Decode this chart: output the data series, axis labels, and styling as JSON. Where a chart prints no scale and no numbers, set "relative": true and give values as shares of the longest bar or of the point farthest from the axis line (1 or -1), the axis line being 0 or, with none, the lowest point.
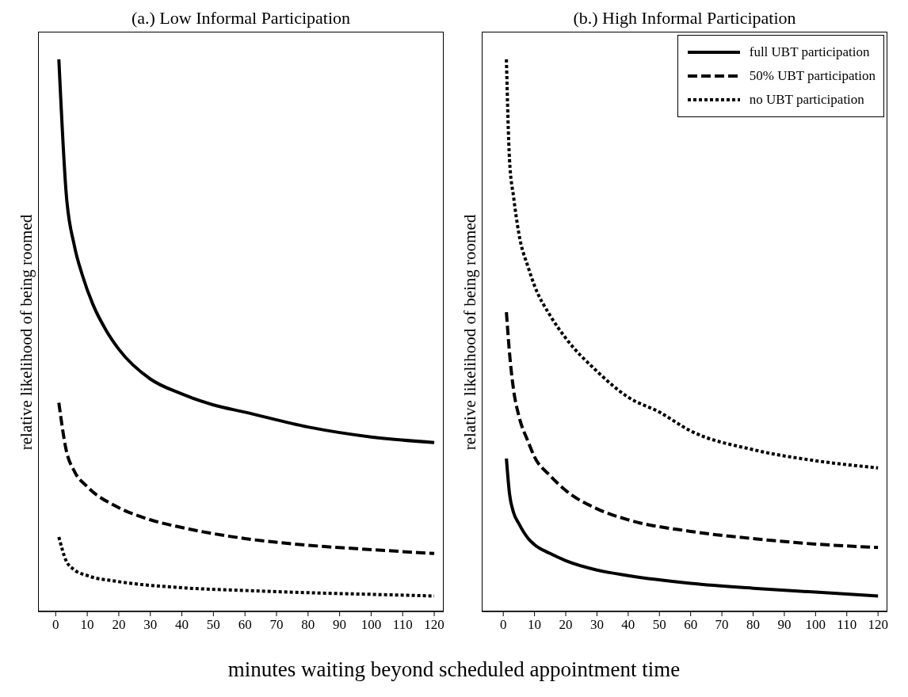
{
  "chart_data": [
    {
      "type": "line",
      "title": "(a.) Low Informal Participation",
      "xlabel": "minutes waiting beyond scheduled appointment time",
      "ylabel": "relative likelihood of being roomed",
      "relative": true,
      "xlim": [
        -5.6,
        123
      ],
      "xticks": [
        0,
        10,
        20,
        30,
        40,
        50,
        60,
        70,
        80,
        90,
        100,
        110,
        120
      ],
      "grid": false,
      "legend": false,
      "marker": "none",
      "series": [
        {
          "color": "#000000",
          "line_style": "solid",
          "x": [
            1,
            3.3,
            5.9,
            8.4,
            11.8,
            16,
            20,
            30,
            40,
            50,
            60,
            80,
            100,
            120
          ],
          "values": [
            1.0,
            0.759,
            0.663,
            0.61,
            0.556,
            0.509,
            0.475,
            0.421,
            0.394,
            0.374,
            0.361,
            0.334,
            0.316,
            0.306
          ]
        },
        {
          "color": "#000000",
          "line_style": "dashed",
          "x": [
            1,
            3.3,
            6,
            10,
            20,
            30,
            40,
            60,
            80,
            100,
            120
          ],
          "values": [
            0.378,
            0.293,
            0.253,
            0.226,
            0.188,
            0.166,
            0.152,
            0.132,
            0.12,
            0.112,
            0.105
          ]
        },
        {
          "color": "#000000",
          "line_style": "dotted",
          "x": [
            1,
            3.3,
            6,
            10,
            20,
            40,
            60,
            80,
            100,
            120
          ],
          "values": [
            0.135,
            0.092,
            0.075,
            0.065,
            0.054,
            0.043,
            0.038,
            0.034,
            0.031,
            0.028
          ]
        }
      ]
    },
    {
      "type": "line",
      "title": "(b.) High Informal Participation",
      "ylabel": "relative likelihood of being roomed",
      "relative": true,
      "xlim": [
        -6.9,
        123
      ],
      "xticks": [
        0,
        10,
        20,
        30,
        40,
        50,
        60,
        70,
        80,
        90,
        100,
        110,
        120
      ],
      "grid": false,
      "legend": "top right",
      "marker": "none",
      "series": [
        {
          "name": "full UBT participation",
          "color": "#000000",
          "line_style": "solid",
          "x": [
            1,
            2,
            3.3,
            5,
            8,
            10,
            15,
            20,
            30,
            40,
            60,
            80,
            100,
            120
          ],
          "values": [
            0.277,
            0.213,
            0.179,
            0.159,
            0.132,
            0.121,
            0.105,
            0.092,
            0.075,
            0.065,
            0.051,
            0.042,
            0.035,
            0.028
          ]
        },
        {
          "name": "50% UBT participation",
          "color": "#000000",
          "line_style": "dashed",
          "x": [
            1,
            2,
            3.3,
            5,
            8,
            10,
            15,
            20,
            30,
            40,
            60,
            80,
            100,
            120
          ],
          "values": [
            0.542,
            0.468,
            0.401,
            0.354,
            0.307,
            0.28,
            0.246,
            0.219,
            0.186,
            0.166,
            0.145,
            0.132,
            0.122,
            0.116
          ]
        },
        {
          "name": "no UBT participation",
          "color": "#000000",
          "line_style": "dotted",
          "x": [
            1,
            2,
            3.3,
            5,
            8,
            10,
            15,
            20,
            30,
            40,
            50,
            60,
            80,
            100,
            120
          ],
          "values": [
            1.0,
            0.818,
            0.751,
            0.684,
            0.623,
            0.59,
            0.536,
            0.495,
            0.435,
            0.388,
            0.361,
            0.327,
            0.293,
            0.273,
            0.26
          ]
        }
      ]
    }
  ]
}
